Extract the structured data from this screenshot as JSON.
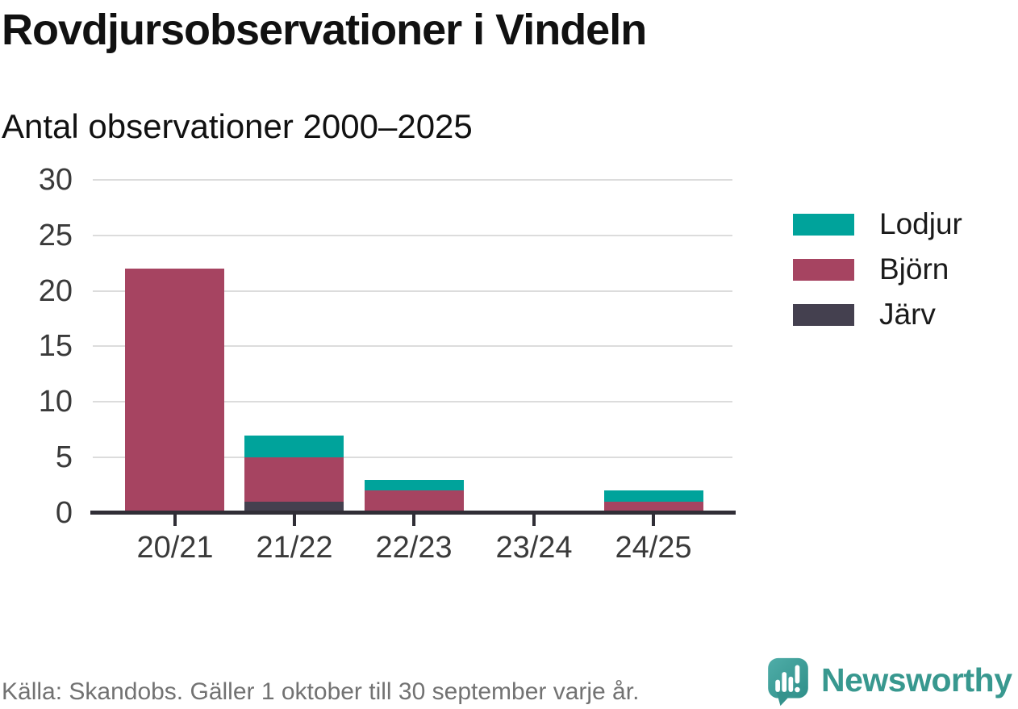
{
  "header": {
    "title": "Rovdjursobservationer i Vindeln",
    "subtitle": "Antal observationer 2000–2025"
  },
  "chart_data": {
    "type": "bar",
    "stacked": true,
    "title": "Rovdjursobservationer i Vindeln",
    "subtitle": "Antal observationer 2000–2025",
    "categories": [
      "20/21",
      "21/22",
      "22/23",
      "23/24",
      "24/25"
    ],
    "series": [
      {
        "name": "Järv",
        "color": "#44404f",
        "values": [
          0,
          1,
          0,
          0,
          0
        ]
      },
      {
        "name": "Björn",
        "color": "#a64461",
        "values": [
          22,
          4,
          2,
          0,
          1
        ]
      },
      {
        "name": "Lodjur",
        "color": "#00a39b",
        "values": [
          0,
          2,
          1,
          0,
          1
        ]
      }
    ],
    "legend_order": [
      "Lodjur",
      "Björn",
      "Järv"
    ],
    "legend_position": "right",
    "xlabel": "",
    "ylabel": "",
    "ylim": [
      0,
      30
    ],
    "yticks": [
      0,
      5,
      10,
      15,
      20,
      25,
      30
    ],
    "grid": "horizontal",
    "totals_by_category": [
      22,
      7,
      3,
      0,
      2
    ]
  },
  "footer": {
    "source": "Källa: Skandobs. Gäller 1 oktober till 30 september varje år.",
    "brand": "Newsworthy"
  },
  "colors": {
    "lodjur": "#00a39b",
    "bjorn": "#a64461",
    "jarv": "#44404f",
    "axis": "#302e36",
    "grid": "#dcdcdc",
    "brand_teal": "#38988f"
  }
}
